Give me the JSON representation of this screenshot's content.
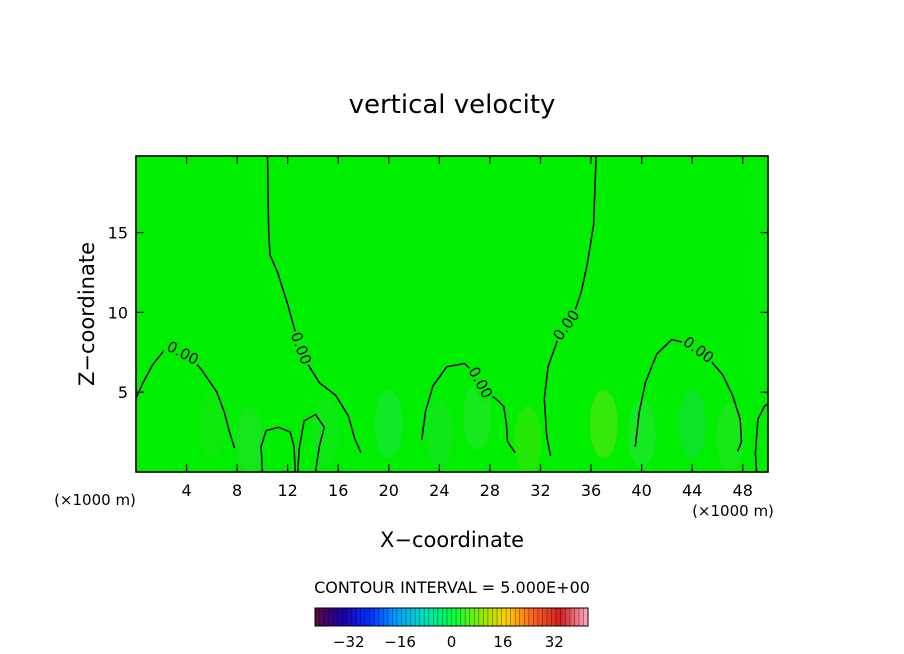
{
  "chart_data": {
    "type": "heatmap",
    "title": "vertical velocity",
    "xlabel": "X−coordinate",
    "ylabel": "Z−coordinate",
    "x_unit_left": "(×1000 m)",
    "x_unit_right": "(×1000 m)",
    "xlim": [
      0,
      50
    ],
    "ylim": [
      0,
      19.8
    ],
    "x_ticks": [
      4,
      8,
      12,
      16,
      20,
      24,
      28,
      32,
      36,
      40,
      44,
      48
    ],
    "y_ticks": [
      5,
      10,
      15
    ],
    "contour_interval_text": "CONTOUR INTERVAL = 5.000E+00",
    "contour_label": "0.00",
    "contours": [
      {
        "label": "0.00",
        "points": [
          [
            10.4,
            19.8
          ],
          [
            10.5,
            15
          ],
          [
            10.6,
            13.6
          ],
          [
            11.2,
            12.5
          ],
          [
            12,
            10.5
          ],
          [
            12.7,
            8.5
          ],
          [
            13.4,
            7
          ],
          [
            14.5,
            5.6
          ],
          [
            15.8,
            4.8
          ],
          [
            16.8,
            3.5
          ],
          [
            17.3,
            2.1
          ],
          [
            17.8,
            1.2
          ]
        ]
      },
      {
        "label": "0.00",
        "points": [
          [
            36.4,
            19.8
          ],
          [
            36.2,
            15.5
          ],
          [
            35.7,
            13
          ],
          [
            35.2,
            11.2
          ],
          [
            34.6,
            9.8
          ],
          [
            33.5,
            8.6
          ],
          [
            32.6,
            6.6
          ],
          [
            32.3,
            4.6
          ],
          [
            32.5,
            2.2
          ],
          [
            32.8,
            1.0
          ]
        ]
      },
      {
        "label": "0.00",
        "points": [
          [
            0,
            4.6
          ],
          [
            0.5,
            5.5
          ],
          [
            1.3,
            6.7
          ],
          [
            2.2,
            7.6
          ],
          [
            3.1,
            7.7
          ],
          [
            4.3,
            7.2
          ],
          [
            5.2,
            6.4
          ],
          [
            6.4,
            5.0
          ],
          [
            7.0,
            3.7
          ],
          [
            7.4,
            2.5
          ],
          [
            7.8,
            1.5
          ]
        ]
      },
      {
        "label": "0.00",
        "points": [
          [
            22.6,
            2.0
          ],
          [
            22.9,
            3.8
          ],
          [
            23.5,
            5.4
          ],
          [
            24.6,
            6.6
          ],
          [
            26.0,
            6.8
          ],
          [
            26.9,
            6.1
          ],
          [
            27.6,
            5.1
          ],
          [
            28.6,
            4.5
          ],
          [
            29.1,
            4.1
          ],
          [
            29.3,
            3.0
          ],
          [
            29.4,
            1.9
          ],
          [
            30.0,
            1.2
          ]
        ]
      },
      {
        "label": "0.00",
        "points": [
          [
            39.5,
            1.6
          ],
          [
            39.8,
            3.7
          ],
          [
            40.3,
            5.6
          ],
          [
            41.2,
            7.4
          ],
          [
            42.4,
            8.3
          ],
          [
            43.9,
            8.0
          ],
          [
            45.1,
            7.3
          ],
          [
            46.4,
            6.1
          ],
          [
            47.2,
            4.8
          ],
          [
            47.8,
            3.3
          ],
          [
            47.9,
            1.9
          ],
          [
            47.6,
            1.3
          ]
        ]
      },
      {
        "label": "",
        "points": [
          [
            10.0,
            0
          ],
          [
            9.9,
            1.6
          ],
          [
            10.3,
            2.6
          ],
          [
            11.3,
            2.8
          ],
          [
            12.2,
            2.5
          ],
          [
            12.5,
            1.6
          ],
          [
            12.6,
            0
          ]
        ]
      },
      {
        "label": "",
        "points": [
          [
            12.8,
            0
          ],
          [
            12.9,
            1.4
          ],
          [
            13.3,
            3.2
          ],
          [
            14.2,
            3.6
          ],
          [
            14.9,
            2.8
          ],
          [
            14.5,
            1.6
          ],
          [
            14.2,
            0
          ]
        ]
      },
      {
        "label": "",
        "points": [
          [
            49.1,
            0
          ],
          [
            49.0,
            1.2
          ],
          [
            49.2,
            3.3
          ],
          [
            49.7,
            4.1
          ],
          [
            50,
            4.3
          ]
        ]
      }
    ],
    "colorbar": {
      "tick_labels": [
        "−32",
        "−16",
        "0",
        "16",
        "32"
      ],
      "tick_values": [
        -32,
        -16,
        0,
        16,
        32
      ],
      "range": [
        -42.5,
        42.5
      ],
      "stops": [
        "#5a0a3a",
        "#1a00aa",
        "#0030ff",
        "#00a0ff",
        "#00e0c0",
        "#00ff40",
        "#80f000",
        "#ffd000",
        "#ff6020",
        "#d02020",
        "#ffb0c0"
      ]
    },
    "field_color": "#00ee00",
    "contour_color": "#000000"
  }
}
